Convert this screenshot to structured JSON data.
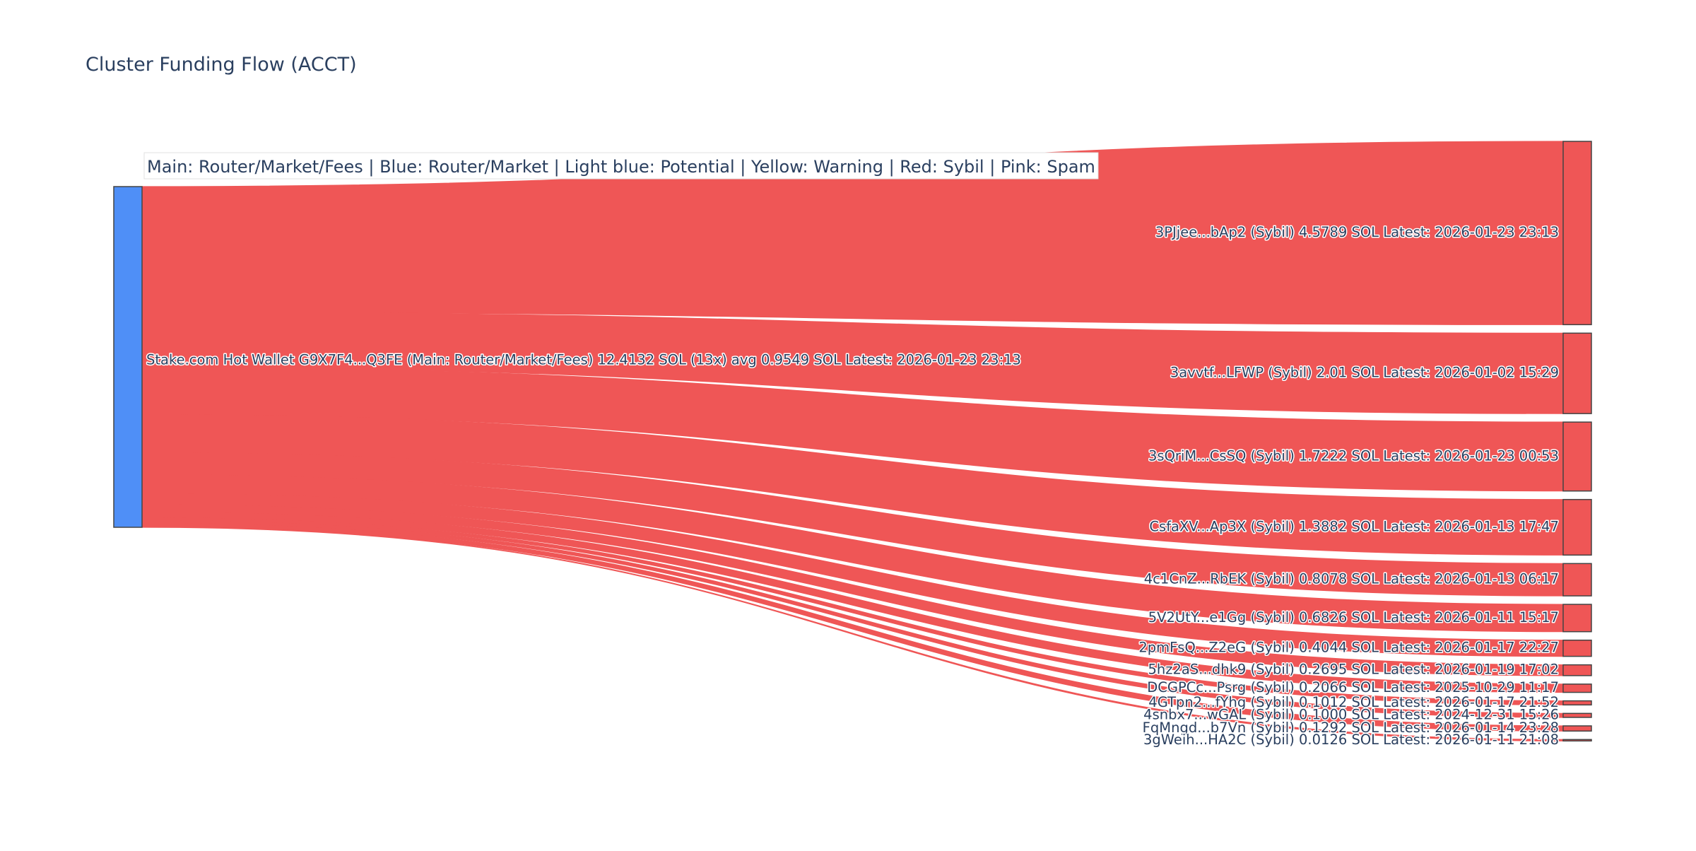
{
  "colors": {
    "source_node": "#4f8ff7",
    "target_node": "#ef5656",
    "link": "#ef5656",
    "title_text": "#2a3f5f",
    "legend_bg": "#ffffff"
  },
  "chart_data": {
    "type": "sankey",
    "title": "Cluster Funding Flow (ACCT)",
    "legend_text": "Main: Router/Market/Fees  |  Blue: Router/Market | Light blue: Potential | Yellow: Warning | Red: Sybil | Pink: Spam",
    "source": {
      "label": "Stake.com Hot Wallet G9X7F4...Q3FE (Main: Router/Market/Fees) 12.4132 SOL (13x) avg 0.9549 SOL Latest: 2026-01-23 23:13",
      "total": 12.4132
    },
    "targets": [
      {
        "label": "3PJjee...bAp2 (Sybil) 4.5789 SOL Latest: 2026-01-23 23:13",
        "value": 4.5789
      },
      {
        "label": "3avvtf...LFWP (Sybil) 2.01 SOL Latest: 2026-01-02 15:29",
        "value": 2.01
      },
      {
        "label": "3sQriM...CsSQ (Sybil) 1.7222 SOL Latest: 2026-01-23 00:53",
        "value": 1.7222
      },
      {
        "label": "CsfaXV...Ap3X (Sybil) 1.3882 SOL Latest: 2026-01-13 17:47",
        "value": 1.3882
      },
      {
        "label": "4c1CnZ...RbEK (Sybil) 0.8078 SOL Latest: 2026-01-13 06:17",
        "value": 0.8078
      },
      {
        "label": "5V2UtY...e1Gg (Sybil) 0.6826 SOL Latest: 2026-01-11 15:17",
        "value": 0.6826
      },
      {
        "label": "2pmFsQ...Z2eG (Sybil) 0.4044 SOL Latest: 2026-01-17 22:27",
        "value": 0.4044
      },
      {
        "label": "5hz2aS...dhk9 (Sybil) 0.2695 SOL Latest: 2026-01-19 17:02",
        "value": 0.2695
      },
      {
        "label": "DCGPCc...Psrg (Sybil) 0.2066 SOL Latest: 2025-10-29 11:17",
        "value": 0.2066
      },
      {
        "label": "4GTpn2...fYhg (Sybil) 0.1012 SOL Latest: 2026-01-17 21:52",
        "value": 0.1012
      },
      {
        "label": "4snbx7...wGAL (Sybil) 0.1000 SOL Latest: 2024-12-31 15:26",
        "value": 0.1
      },
      {
        "label": "FqMngd...b7Vn (Sybil) 0.1292 SOL Latest: 2026-01-14 23:28",
        "value": 0.1292
      },
      {
        "label": "3gWeih...HA2C (Sybil) 0.0126 SOL Latest: 2026-01-11 21:08",
        "value": 0.0126
      }
    ]
  }
}
